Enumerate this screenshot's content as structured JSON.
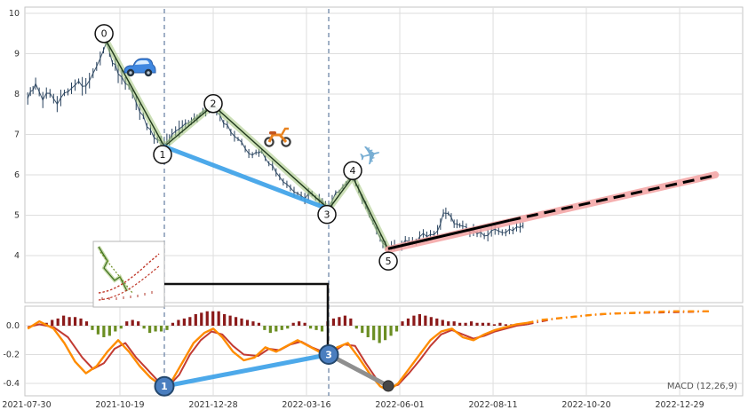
{
  "macd_label": "MACD (12,26,9)",
  "colors": {
    "price": "#26405c",
    "wave_band": "#a2c57c",
    "wave_line": "#20391c",
    "blue": "#3aa0e8",
    "pink": "#f4a3a3",
    "black": "#000000",
    "vline": "#6e86a8",
    "macd_orange": "#ff8c00",
    "macd_red": "#c23b33",
    "hist_pos": "#8b1a1a",
    "hist_neg": "#6b8e23",
    "marker_fill": "#4a7ebf",
    "marker_border": "#24486e",
    "gray": "#8f8f8f",
    "dot": "#474747",
    "grid": "#dedede",
    "panel_border": "#c6c6c6",
    "tick_text": "#333333",
    "macd_label_text": "#555555"
  },
  "chart_data": [
    {
      "id": "price",
      "type": "line",
      "title": "",
      "xlabel": "",
      "ylabel": "",
      "ylim": [
        2.8,
        10.2
      ],
      "yticks": [
        10,
        9,
        8,
        7,
        6,
        5,
        4
      ],
      "xtick_labels": [
        "2021-07-30",
        "2021-10-19",
        "2021-12-28",
        "2022-03-16",
        "2022-06-01",
        "2022-08-11",
        "2022-10-20",
        "2022-12-29"
      ],
      "grid": true,
      "price_points": [
        [
          0.004,
          7.95
        ],
        [
          0.015,
          8.2
        ],
        [
          0.025,
          7.9
        ],
        [
          0.035,
          8.05
        ],
        [
          0.045,
          7.8
        ],
        [
          0.055,
          8.0
        ],
        [
          0.065,
          8.1
        ],
        [
          0.075,
          8.35
        ],
        [
          0.085,
          8.15
        ],
        [
          0.095,
          8.5
        ],
        [
          0.105,
          8.9
        ],
        [
          0.114,
          9.3
        ],
        [
          0.122,
          8.8
        ],
        [
          0.13,
          8.55
        ],
        [
          0.14,
          8.3
        ],
        [
          0.15,
          8.0
        ],
        [
          0.16,
          7.6
        ],
        [
          0.17,
          7.25
        ],
        [
          0.18,
          6.95
        ],
        [
          0.1943,
          6.7
        ],
        [
          0.205,
          6.95
        ],
        [
          0.215,
          7.1
        ],
        [
          0.228,
          7.3
        ],
        [
          0.24,
          7.45
        ],
        [
          0.252,
          7.6
        ],
        [
          0.2624,
          7.72
        ],
        [
          0.272,
          7.45
        ],
        [
          0.282,
          7.2
        ],
        [
          0.292,
          7.0
        ],
        [
          0.302,
          6.8
        ],
        [
          0.312,
          6.55
        ],
        [
          0.322,
          6.5
        ],
        [
          0.33,
          6.55
        ],
        [
          0.34,
          6.3
        ],
        [
          0.35,
          6.05
        ],
        [
          0.36,
          5.85
        ],
        [
          0.37,
          5.7
        ],
        [
          0.38,
          5.55
        ],
        [
          0.39,
          5.45
        ],
        [
          0.4,
          5.5
        ],
        [
          0.41,
          5.35
        ],
        [
          0.4233,
          5.15
        ],
        [
          0.433,
          5.5
        ],
        [
          0.443,
          5.7
        ],
        [
          0.4567,
          5.95
        ],
        [
          0.465,
          5.6
        ],
        [
          0.475,
          5.2
        ],
        [
          0.485,
          4.8
        ],
        [
          0.495,
          4.45
        ],
        [
          0.5063,
          4.15
        ],
        [
          0.515,
          4.3
        ],
        [
          0.525,
          4.25
        ],
        [
          0.535,
          4.4
        ],
        [
          0.545,
          4.35
        ],
        [
          0.555,
          4.5
        ],
        [
          0.565,
          4.55
        ],
        [
          0.575,
          4.6
        ],
        [
          0.583,
          5.0
        ],
        [
          0.59,
          5.1
        ],
        [
          0.598,
          4.8
        ],
        [
          0.61,
          4.7
        ],
        [
          0.62,
          4.6
        ],
        [
          0.63,
          4.55
        ],
        [
          0.64,
          4.5
        ],
        [
          0.65,
          4.6
        ],
        [
          0.66,
          4.65
        ],
        [
          0.67,
          4.6
        ],
        [
          0.68,
          4.65
        ],
        [
          0.69,
          4.7
        ],
        [
          0.698,
          4.72
        ]
      ],
      "wave_points": [
        {
          "n": "0",
          "x": 0.114,
          "y": 9.3
        },
        {
          "n": "1",
          "x": 0.1943,
          "y": 6.7
        },
        {
          "n": "2",
          "x": 0.2624,
          "y": 7.72
        },
        {
          "n": "3",
          "x": 0.4233,
          "y": 5.15
        },
        {
          "n": "4",
          "x": 0.4567,
          "y": 5.95
        },
        {
          "n": "5",
          "x": 0.5063,
          "y": 4.15
        }
      ],
      "trendline_points": [
        [
          0.1943,
          6.7
        ],
        [
          0.4233,
          5.15
        ]
      ],
      "projection": {
        "band": [
          [
            0.5063,
            4.15
          ],
          [
            0.962,
            6.0
          ]
        ],
        "solid": [
          [
            0.5063,
            4.17
          ],
          [
            0.675,
            4.87
          ]
        ],
        "dashed": [
          [
            0.675,
            4.87
          ],
          [
            0.958,
            5.97
          ]
        ]
      },
      "vlines": [
        0.1943,
        0.4233
      ],
      "icons": [
        {
          "name": "car-emoji",
          "x": 0.161,
          "y": 8.7
        },
        {
          "name": "scooter-emoji",
          "x": 0.3515,
          "y": 6.97
        },
        {
          "name": "airplane-emoji",
          "x": 0.4851,
          "y": 6.48
        }
      ]
    },
    {
      "id": "macd",
      "type": "bar",
      "label": "MACD (12,26,9)",
      "ylim": [
        -0.486,
        0.135
      ],
      "yticks": [
        0.0,
        -0.2,
        -0.4
      ],
      "grid": true,
      "histogram": [
        [
          0.03,
          0.02
        ],
        [
          0.038,
          0.04
        ],
        [
          0.046,
          0.05
        ],
        [
          0.054,
          0.07
        ],
        [
          0.062,
          0.06
        ],
        [
          0.07,
          0.06
        ],
        [
          0.078,
          0.05
        ],
        [
          0.086,
          0.03
        ],
        [
          0.094,
          -0.03
        ],
        [
          0.102,
          -0.06
        ],
        [
          0.11,
          -0.08
        ],
        [
          0.118,
          -0.07
        ],
        [
          0.126,
          -0.04
        ],
        [
          0.134,
          -0.02
        ],
        [
          0.142,
          0.03
        ],
        [
          0.15,
          0.04
        ],
        [
          0.158,
          0.03
        ],
        [
          0.166,
          -0.02
        ],
        [
          0.174,
          -0.05
        ],
        [
          0.182,
          -0.04
        ],
        [
          0.19,
          -0.04
        ],
        [
          0.198,
          -0.03
        ],
        [
          0.206,
          0.02
        ],
        [
          0.214,
          0.04
        ],
        [
          0.222,
          0.05
        ],
        [
          0.23,
          0.06
        ],
        [
          0.238,
          0.08
        ],
        [
          0.246,
          0.09
        ],
        [
          0.254,
          0.1
        ],
        [
          0.262,
          0.1
        ],
        [
          0.27,
          0.1
        ],
        [
          0.278,
          0.08
        ],
        [
          0.286,
          0.07
        ],
        [
          0.294,
          0.06
        ],
        [
          0.302,
          0.05
        ],
        [
          0.31,
          0.04
        ],
        [
          0.318,
          0.03
        ],
        [
          0.326,
          0.02
        ],
        [
          0.334,
          -0.03
        ],
        [
          0.342,
          -0.05
        ],
        [
          0.35,
          -0.04
        ],
        [
          0.358,
          -0.03
        ],
        [
          0.366,
          -0.02
        ],
        [
          0.374,
          0.02
        ],
        [
          0.382,
          0.03
        ],
        [
          0.39,
          0.02
        ],
        [
          0.398,
          -0.02
        ],
        [
          0.406,
          -0.03
        ],
        [
          0.414,
          -0.04
        ],
        [
          0.422,
          0.03
        ],
        [
          0.43,
          0.05
        ],
        [
          0.438,
          0.06
        ],
        [
          0.446,
          0.07
        ],
        [
          0.454,
          0.05
        ],
        [
          0.462,
          -0.02
        ],
        [
          0.47,
          -0.05
        ],
        [
          0.478,
          -0.08
        ],
        [
          0.486,
          -0.1
        ],
        [
          0.494,
          -0.12
        ],
        [
          0.502,
          -0.1
        ],
        [
          0.51,
          -0.07
        ],
        [
          0.518,
          -0.04
        ],
        [
          0.526,
          0.03
        ],
        [
          0.534,
          0.05
        ],
        [
          0.542,
          0.07
        ],
        [
          0.55,
          0.08
        ],
        [
          0.558,
          0.07
        ],
        [
          0.566,
          0.06
        ],
        [
          0.574,
          0.05
        ],
        [
          0.582,
          0.04
        ],
        [
          0.59,
          0.03
        ],
        [
          0.598,
          0.03
        ],
        [
          0.606,
          0.02
        ],
        [
          0.614,
          0.02
        ],
        [
          0.622,
          0.03
        ],
        [
          0.63,
          0.02
        ],
        [
          0.638,
          0.02
        ],
        [
          0.646,
          0.02
        ],
        [
          0.654,
          0.01
        ],
        [
          0.662,
          0.02
        ],
        [
          0.67,
          0.01
        ],
        [
          0.678,
          0.01
        ],
        [
          0.686,
          0.01
        ],
        [
          0.694,
          0.01
        ]
      ],
      "macd_line": {
        "dash_from": 0.7,
        "points": [
          [
            0.004,
            -0.02
          ],
          [
            0.02,
            0.03
          ],
          [
            0.04,
            -0.02
          ],
          [
            0.055,
            -0.12
          ],
          [
            0.07,
            -0.25
          ],
          [
            0.085,
            -0.33
          ],
          [
            0.1,
            -0.28
          ],
          [
            0.115,
            -0.18
          ],
          [
            0.13,
            -0.1
          ],
          [
            0.145,
            -0.18
          ],
          [
            0.16,
            -0.28
          ],
          [
            0.175,
            -0.36
          ],
          [
            0.1943,
            -0.43
          ],
          [
            0.205,
            -0.38
          ],
          [
            0.22,
            -0.25
          ],
          [
            0.235,
            -0.12
          ],
          [
            0.25,
            -0.05
          ],
          [
            0.2624,
            -0.02
          ],
          [
            0.275,
            -0.08
          ],
          [
            0.29,
            -0.18
          ],
          [
            0.305,
            -0.24
          ],
          [
            0.32,
            -0.22
          ],
          [
            0.335,
            -0.15
          ],
          [
            0.35,
            -0.18
          ],
          [
            0.365,
            -0.14
          ],
          [
            0.38,
            -0.1
          ],
          [
            0.395,
            -0.14
          ],
          [
            0.41,
            -0.18
          ],
          [
            0.4233,
            -0.2
          ],
          [
            0.435,
            -0.15
          ],
          [
            0.45,
            -0.12
          ],
          [
            0.465,
            -0.22
          ],
          [
            0.48,
            -0.33
          ],
          [
            0.495,
            -0.42
          ],
          [
            0.5063,
            -0.45
          ],
          [
            0.52,
            -0.4
          ],
          [
            0.535,
            -0.3
          ],
          [
            0.55,
            -0.2
          ],
          [
            0.565,
            -0.1
          ],
          [
            0.58,
            -0.04
          ],
          [
            0.595,
            -0.02
          ],
          [
            0.61,
            -0.08
          ],
          [
            0.625,
            -0.1
          ],
          [
            0.64,
            -0.06
          ],
          [
            0.655,
            -0.03
          ],
          [
            0.67,
            -0.01
          ],
          [
            0.685,
            0.01
          ],
          [
            0.7,
            0.02
          ],
          [
            0.72,
            0.04
          ],
          [
            0.76,
            0.06
          ],
          [
            0.8,
            0.08
          ],
          [
            0.85,
            0.09
          ],
          [
            0.9,
            0.1
          ],
          [
            0.955,
            0.1
          ]
        ]
      },
      "signal_line": {
        "dash_from": 0.7,
        "points": [
          [
            0.004,
            -0.01
          ],
          [
            0.02,
            0.01
          ],
          [
            0.04,
            -0.01
          ],
          [
            0.06,
            -0.08
          ],
          [
            0.08,
            -0.22
          ],
          [
            0.095,
            -0.3
          ],
          [
            0.11,
            -0.26
          ],
          [
            0.125,
            -0.16
          ],
          [
            0.14,
            -0.12
          ],
          [
            0.155,
            -0.22
          ],
          [
            0.17,
            -0.3
          ],
          [
            0.185,
            -0.38
          ],
          [
            0.2,
            -0.42
          ],
          [
            0.215,
            -0.34
          ],
          [
            0.23,
            -0.2
          ],
          [
            0.245,
            -0.1
          ],
          [
            0.26,
            -0.04
          ],
          [
            0.275,
            -0.06
          ],
          [
            0.29,
            -0.14
          ],
          [
            0.305,
            -0.2
          ],
          [
            0.325,
            -0.21
          ],
          [
            0.34,
            -0.16
          ],
          [
            0.355,
            -0.17
          ],
          [
            0.37,
            -0.13
          ],
          [
            0.385,
            -0.11
          ],
          [
            0.4,
            -0.15
          ],
          [
            0.415,
            -0.18
          ],
          [
            0.43,
            -0.18
          ],
          [
            0.445,
            -0.13
          ],
          [
            0.46,
            -0.14
          ],
          [
            0.475,
            -0.26
          ],
          [
            0.49,
            -0.37
          ],
          [
            0.505,
            -0.43
          ],
          [
            0.52,
            -0.41
          ],
          [
            0.535,
            -0.33
          ],
          [
            0.55,
            -0.24
          ],
          [
            0.565,
            -0.14
          ],
          [
            0.58,
            -0.06
          ],
          [
            0.595,
            -0.03
          ],
          [
            0.61,
            -0.06
          ],
          [
            0.625,
            -0.09
          ],
          [
            0.64,
            -0.07
          ],
          [
            0.655,
            -0.04
          ],
          [
            0.67,
            -0.02
          ],
          [
            0.685,
            0.0
          ],
          [
            0.7,
            0.01
          ],
          [
            0.74,
            0.05
          ],
          [
            0.78,
            0.07
          ],
          [
            0.82,
            0.085
          ],
          [
            0.87,
            0.09
          ],
          [
            0.92,
            0.095
          ],
          [
            0.955,
            0.1
          ]
        ]
      },
      "markers": [
        {
          "n": "1",
          "x": 0.1943,
          "y": -0.42
        },
        {
          "n": "3",
          "x": 0.4233,
          "y": -0.2
        }
      ],
      "blue_connector": [
        [
          0.1943,
          -0.42
        ],
        [
          0.4233,
          -0.2
        ]
      ],
      "gray_connector": [
        [
          0.4233,
          -0.2
        ],
        [
          0.5063,
          -0.418
        ]
      ],
      "endpoint_dot": [
        0.5063,
        -0.418
      ]
    }
  ]
}
